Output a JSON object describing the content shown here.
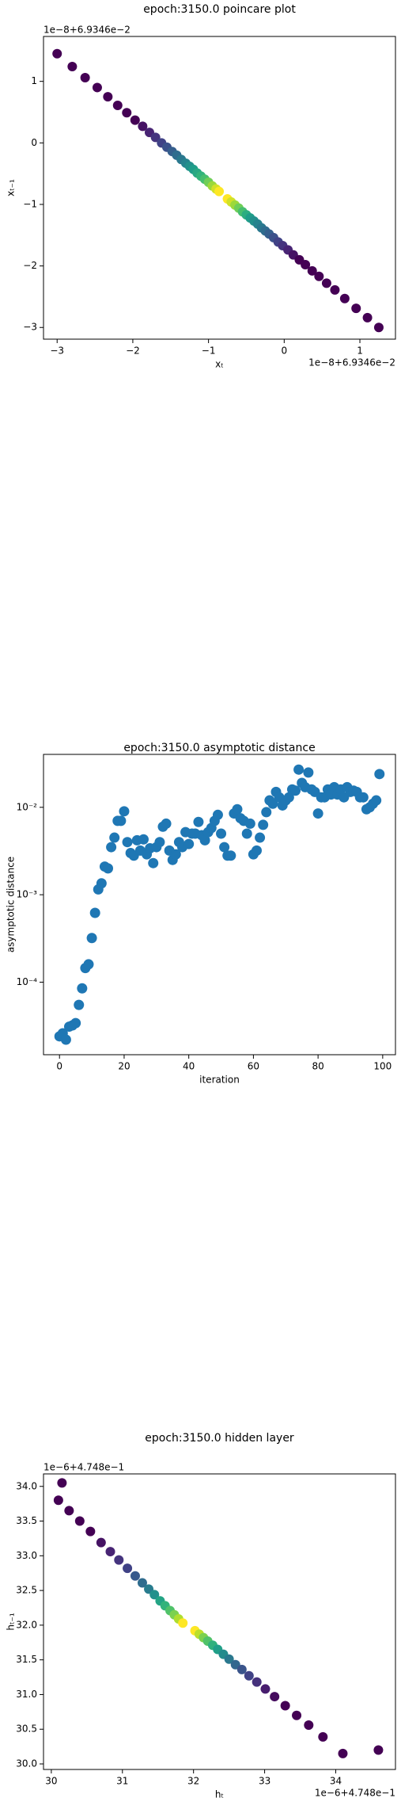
{
  "chart_data": [
    {
      "type": "scatter",
      "title": "epoch:3150.0 poincare plot",
      "x_label": "xₜ",
      "y_label": "xₜ₋₁",
      "x_offset": "1e−8+6.9346e−2",
      "y_offset": "1e−8+6.9346e−2",
      "colormap": "viridis",
      "x": [
        -3.0,
        -2.8,
        -2.63,
        -2.47,
        -2.33,
        -2.2,
        -2.08,
        -1.97,
        -1.87,
        -1.78,
        -1.7,
        -1.62,
        -1.55,
        -1.48,
        -1.42,
        -1.36,
        -1.3,
        -1.25,
        -1.2,
        -1.15,
        -1.1,
        -1.05,
        -1.0,
        -0.95,
        -0.9,
        -0.86,
        -0.75,
        -0.7,
        -0.65,
        -0.6,
        -0.55,
        -0.5,
        -0.45,
        -0.4,
        -0.35,
        -0.3,
        -0.25,
        -0.2,
        -0.14,
        -0.08,
        -0.02,
        0.05,
        0.12,
        0.2,
        0.28,
        0.37,
        0.46,
        0.56,
        0.67,
        0.8,
        0.95,
        1.1,
        1.25
      ],
      "y": [
        1.45,
        1.24,
        1.06,
        0.9,
        0.75,
        0.61,
        0.49,
        0.37,
        0.27,
        0.17,
        0.09,
        0.0,
        -0.07,
        -0.14,
        -0.2,
        -0.27,
        -0.33,
        -0.38,
        -0.43,
        -0.49,
        -0.54,
        -0.59,
        -0.64,
        -0.7,
        -0.75,
        -0.79,
        -0.91,
        -0.96,
        -1.01,
        -1.06,
        -1.12,
        -1.17,
        -1.22,
        -1.27,
        -1.32,
        -1.38,
        -1.43,
        -1.48,
        -1.54,
        -1.61,
        -1.67,
        -1.74,
        -1.82,
        -1.9,
        -1.98,
        -2.08,
        -2.17,
        -2.28,
        -2.39,
        -2.53,
        -2.69,
        -2.84,
        -3.0
      ],
      "c": [
        0,
        0,
        0,
        0,
        0,
        0,
        0,
        0,
        0.05,
        0.1,
        0.15,
        0.2,
        0.25,
        0.3,
        0.35,
        0.4,
        0.45,
        0.5,
        0.55,
        0.6,
        0.65,
        0.7,
        0.78,
        0.85,
        0.93,
        1,
        1,
        0.93,
        0.85,
        0.78,
        0.7,
        0.62,
        0.55,
        0.5,
        0.45,
        0.4,
        0.35,
        0.3,
        0.25,
        0.2,
        0.15,
        0.1,
        0.05,
        0,
        0,
        0,
        0,
        0,
        0,
        0,
        0,
        0,
        0
      ],
      "xlim": [
        -3.18,
        1.47
      ],
      "ylim": [
        -3.19,
        1.73
      ],
      "xticks": [
        {
          "value": -3,
          "label": "−3"
        },
        {
          "value": -2,
          "label": "−2"
        },
        {
          "value": -1,
          "label": "−1"
        },
        0,
        1
      ],
      "yticks": [
        1,
        0,
        {
          "value": -1,
          "label": "−1"
        },
        {
          "value": -2,
          "label": "−2"
        },
        {
          "value": -3,
          "label": "−3"
        }
      ]
    },
    {
      "type": "scatter",
      "title": "epoch:3150.0 asymptotic distance",
      "x_label": "iteration",
      "y_label": "asymptotic distance",
      "yscale": "log",
      "color": "#1f77b4",
      "x": [
        0,
        1,
        2,
        3,
        4,
        5,
        6,
        7,
        8,
        9,
        10,
        11,
        12,
        13,
        14,
        15,
        16,
        17,
        18,
        19,
        20,
        21,
        22,
        23,
        24,
        25,
        26,
        27,
        28,
        29,
        30,
        31,
        32,
        33,
        34,
        35,
        36,
        37,
        38,
        39,
        40,
        41,
        42,
        43,
        44,
        45,
        46,
        47,
        48,
        49,
        50,
        51,
        52,
        53,
        54,
        55,
        56,
        57,
        58,
        59,
        60,
        61,
        62,
        63,
        64,
        65,
        66,
        67,
        68,
        69,
        70,
        71,
        72,
        73,
        74,
        75,
        76,
        77,
        78,
        79,
        80,
        81,
        82,
        83,
        84,
        85,
        86,
        87,
        88,
        89,
        90,
        91,
        92,
        93,
        94,
        95,
        96,
        97,
        98,
        99
      ],
      "y": [
        2.4e-05,
        2.6e-05,
        2.2e-05,
        3.1e-05,
        3.2e-05,
        3.4e-05,
        5.5e-05,
        8.5e-05,
        0.000145,
        0.00016,
        0.00032,
        0.00062,
        0.00115,
        0.00135,
        0.0021,
        0.002,
        0.0035,
        0.0045,
        0.007,
        0.007,
        0.009,
        0.004,
        0.003,
        0.0028,
        0.0042,
        0.0032,
        0.0043,
        0.0029,
        0.0034,
        0.0023,
        0.0035,
        0.004,
        0.006,
        0.0065,
        0.0032,
        0.0025,
        0.0029,
        0.004,
        0.0035,
        0.0052,
        0.0038,
        0.005,
        0.005,
        0.0068,
        0.0048,
        0.0042,
        0.0052,
        0.0058,
        0.007,
        0.0082,
        0.005,
        0.0035,
        0.0028,
        0.0028,
        0.0085,
        0.0095,
        0.0075,
        0.007,
        0.005,
        0.0065,
        0.0029,
        0.0032,
        0.0045,
        0.0063,
        0.0088,
        0.012,
        0.011,
        0.015,
        0.013,
        0.0105,
        0.012,
        0.013,
        0.016,
        0.0155,
        0.027,
        0.019,
        0.017,
        0.025,
        0.016,
        0.015,
        0.0085,
        0.013,
        0.013,
        0.016,
        0.014,
        0.017,
        0.014,
        0.016,
        0.013,
        0.017,
        0.015,
        0.0155,
        0.015,
        0.013,
        0.013,
        0.0095,
        0.01,
        0.011,
        0.012,
        0.024
      ],
      "xlim": [
        -4.95,
        103.95
      ],
      "ylim": [
        1.48e-05,
        0.0403
      ],
      "xticks": [
        0,
        20,
        40,
        60,
        80,
        100
      ],
      "yticks": [
        {
          "value": 0.01,
          "label": "10⁻²"
        },
        {
          "value": 0.001,
          "label": "10⁻³"
        },
        {
          "value": 0.0001,
          "label": "10⁻⁴"
        }
      ]
    },
    {
      "type": "scatter",
      "title": "epoch:3150.0 hidden layer",
      "x_label": "hₜ",
      "y_label": "hₜ₋₁",
      "x_offset": "1e−6+4.748e−1",
      "y_offset": "1e−6+4.748e−1",
      "colormap": "viridis",
      "x": [
        30.1,
        30.15,
        34.6,
        30.25,
        30.4,
        30.55,
        30.7,
        30.83,
        30.95,
        31.07,
        31.18,
        31.28,
        31.37,
        31.45,
        31.53,
        31.6,
        31.67,
        31.73,
        31.79,
        31.85,
        32.02,
        32.08,
        32.14,
        32.2,
        32.27,
        32.34,
        32.42,
        32.5,
        32.59,
        32.68,
        32.78,
        32.89,
        33.01,
        33.14,
        33.29,
        33.45,
        33.62,
        33.82,
        34.1
      ],
      "y": [
        33.8,
        34.05,
        30.2,
        33.65,
        33.5,
        33.35,
        33.19,
        33.06,
        32.94,
        32.82,
        32.71,
        32.61,
        32.52,
        32.44,
        32.35,
        32.28,
        32.21,
        32.15,
        32.09,
        32.03,
        31.92,
        31.87,
        31.82,
        31.77,
        31.71,
        31.65,
        31.58,
        31.51,
        31.43,
        31.36,
        31.27,
        31.18,
        31.08,
        30.97,
        30.84,
        30.7,
        30.56,
        30.39,
        30.15
      ],
      "c": [
        0,
        0,
        0,
        0,
        0,
        0,
        0.05,
        0.1,
        0.15,
        0.2,
        0.28,
        0.35,
        0.42,
        0.5,
        0.58,
        0.65,
        0.72,
        0.8,
        0.88,
        1,
        1,
        0.9,
        0.8,
        0.72,
        0.64,
        0.56,
        0.48,
        0.4,
        0.33,
        0.26,
        0.2,
        0.14,
        0.08,
        0.03,
        0,
        0,
        0,
        0,
        0
      ],
      "xlim": [
        29.89,
        34.84
      ],
      "ylim": [
        29.92,
        34.18
      ],
      "xticks": [
        30,
        31,
        32,
        33,
        34
      ],
      "yticks": [
        {
          "value": 34,
          "label": "34.0"
        },
        {
          "value": 33.5,
          "label": "33.5"
        },
        {
          "value": 33,
          "label": "33.0"
        },
        {
          "value": 32.5,
          "label": "32.5"
        },
        {
          "value": 32,
          "label": "32.0"
        },
        {
          "value": 31.5,
          "label": "31.5"
        },
        {
          "value": 31,
          "label": "31.0"
        },
        {
          "value": 30.5,
          "label": "30.5"
        },
        {
          "value": 30,
          "label": "30.0"
        }
      ]
    }
  ]
}
